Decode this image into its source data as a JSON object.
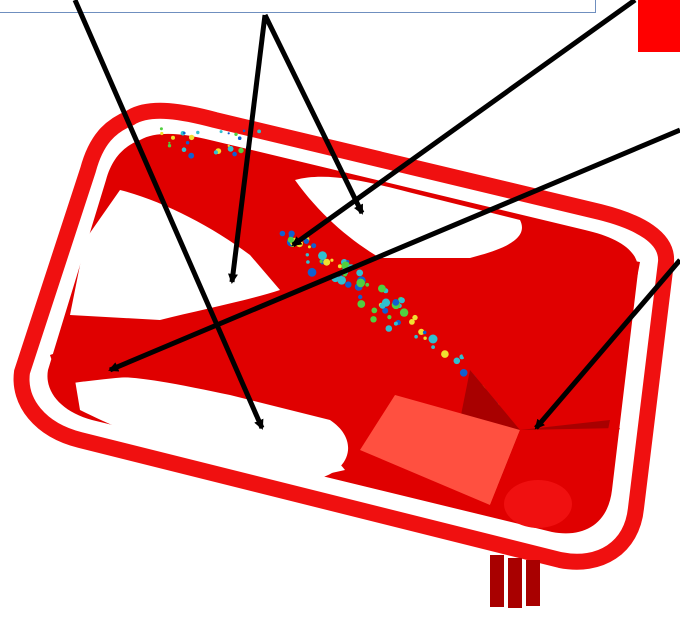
{
  "figure": {
    "legend_color": "#ff0000",
    "part_color": "#e00000",
    "rim_color": "#f01010",
    "shadow_color": "#a80000",
    "highlight_color": "#ff5040",
    "void_color": "#ffffff",
    "blue_region_color": "#1060d0",
    "cyan_region_color": "#30c0d0",
    "green_region_color": "#50d040",
    "yellow_region_color": "#f0e030",
    "arrow_color": "#000000"
  },
  "callouts": {
    "count": 6
  }
}
